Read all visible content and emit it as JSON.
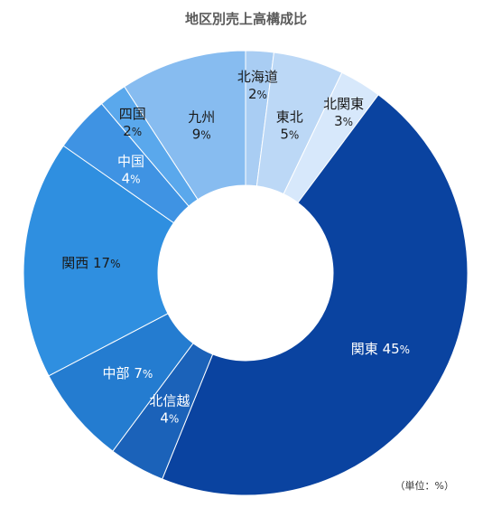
{
  "chart_data": {
    "type": "pie",
    "title": "地区別売上高構成比",
    "unit_note": "（単位：%）",
    "percent_sign": "%",
    "categories": [
      "北海道",
      "東北",
      "北関東",
      "関東",
      "北信越",
      "中部",
      "関西",
      "中国",
      "四国",
      "九州"
    ],
    "values": [
      2,
      5,
      3,
      45,
      4,
      7,
      17,
      4,
      2,
      9
    ],
    "colors": [
      "#a9cdf3",
      "#bcd8f6",
      "#d7e8fb",
      "#0a43a0",
      "#1b62b9",
      "#247cd0",
      "#2f8fe0",
      "#3f93e3",
      "#5aa8ec",
      "#87bcf0"
    ],
    "label_styles": [
      "dark",
      "dark",
      "dark",
      "light",
      "light",
      "light",
      "dark",
      "light",
      "dark",
      "dark"
    ],
    "label_layout": [
      "stack",
      "stack",
      "stack",
      "inline",
      "stack",
      "inline",
      "inline",
      "stack",
      "stack",
      "stack"
    ]
  }
}
